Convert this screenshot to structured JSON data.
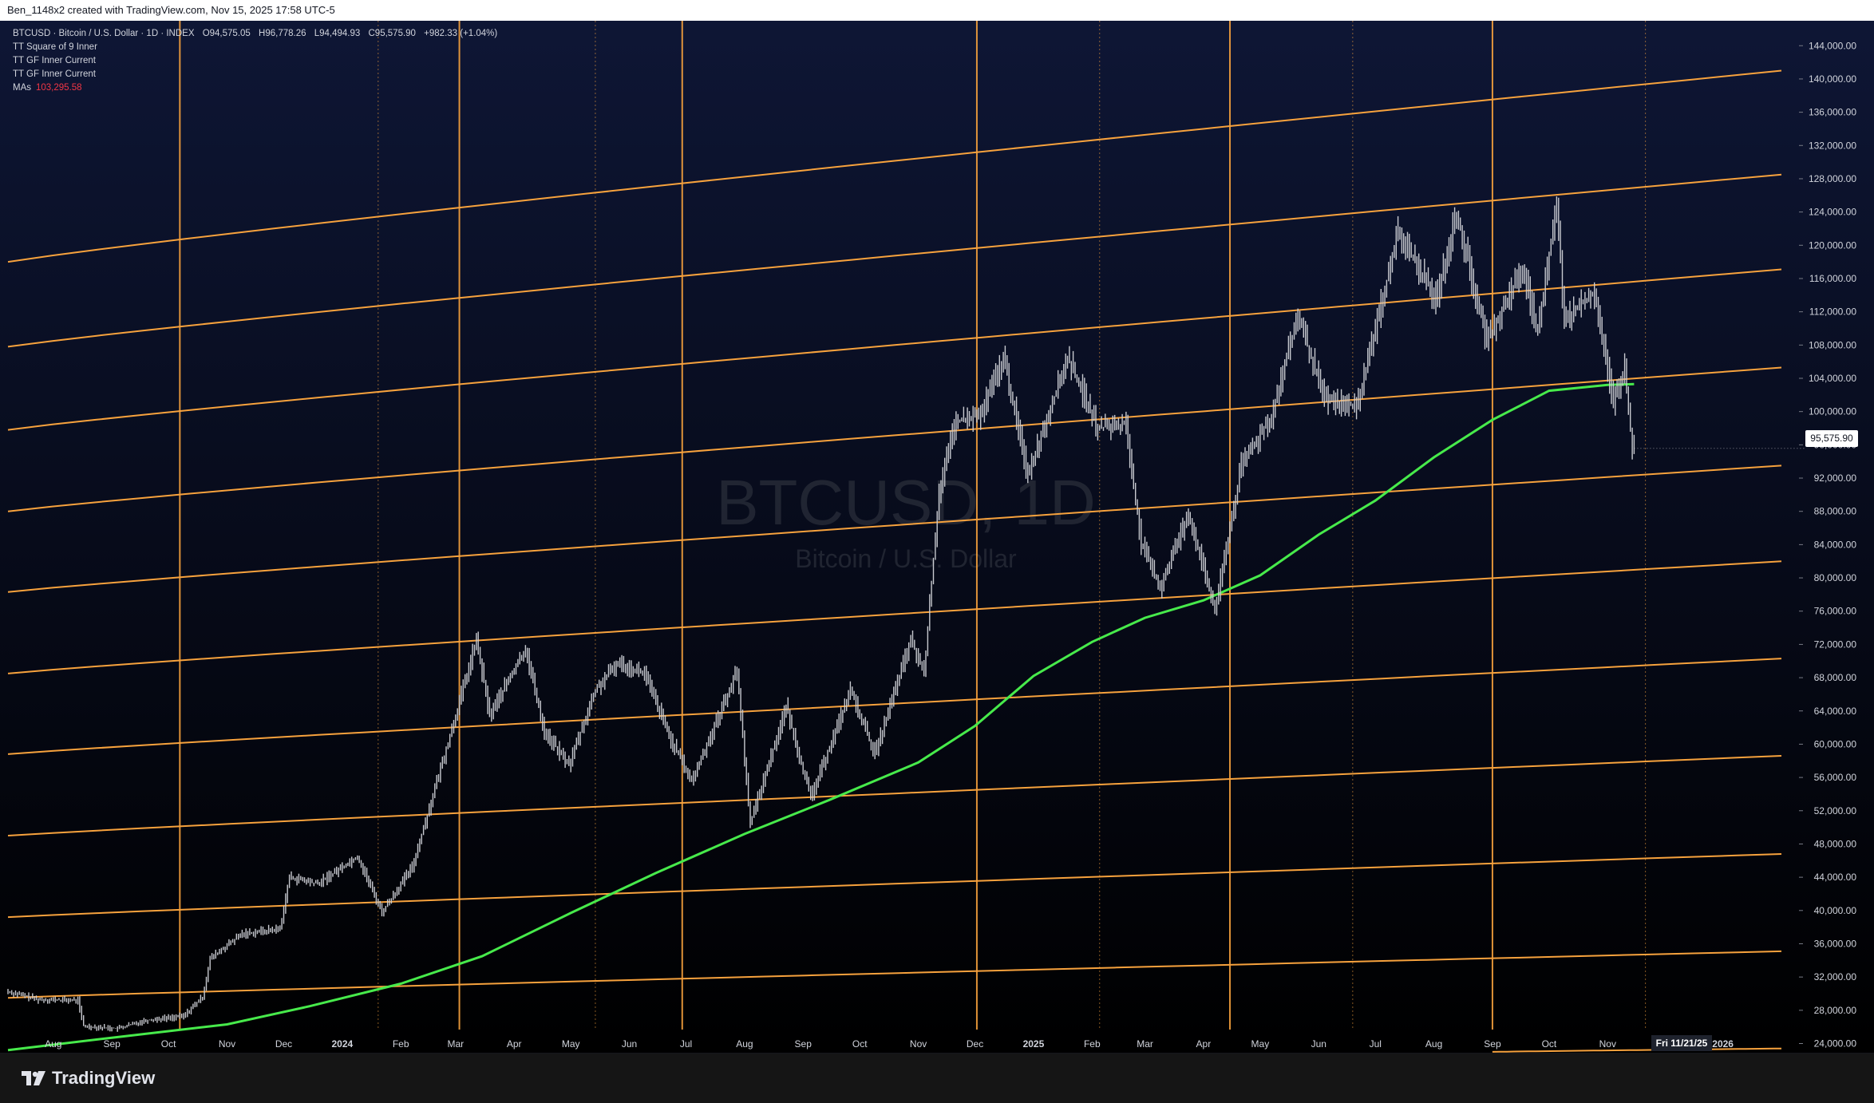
{
  "topbar": {
    "text": "Ben_1148x2 created with TradingView.com, Nov 15, 2025 17:58 UTC-5"
  },
  "legend": {
    "symbol": "BTCUSD · Bitcoin / U.S. Dollar · 1D · INDEX",
    "o_label": "O",
    "o_value": "94,575.05",
    "h_label": "H",
    "h_value": "96,778.26",
    "l_label": "L",
    "l_value": "94,494.93",
    "c_label": "C",
    "c_value": "95,575.90",
    "change": "+982.33 (+1.04%)",
    "indicators": [
      "TT Square of 9 Inner",
      "TT GF Inner Current",
      "TT GF Inner Current"
    ],
    "ma_label": "MAs",
    "ma_value": "103,295.58"
  },
  "watermark": {
    "ticker": "BTCUSD, 1D",
    "name": "Bitcoin / U.S. Dollar"
  },
  "price_tag": "95,575.90",
  "date_tag": "Fri 11/21/25",
  "brand": {
    "name": "TradingView"
  },
  "colors": {
    "background_top": "#0e1635",
    "background_bottom": "#000000",
    "band": "#f7a23d",
    "vline": "#f7a23d",
    "ma": "#47ea4b",
    "candle": "#c8cad0"
  },
  "chart_data": {
    "type": "line",
    "y_axis_side": "right",
    "ylim": [
      22800,
      147000
    ],
    "y_ticks": [
      "144,000.00",
      "140,000.00",
      "136,000.00",
      "132,000.00",
      "128,000.00",
      "124,000.00",
      "120,000.00",
      "116,000.00",
      "112,000.00",
      "108,000.00",
      "104,000.00",
      "100,000.00",
      "96,000.00",
      "92,000.00",
      "88,000.00",
      "84,000.00",
      "80,000.00",
      "76,000.00",
      "72,000.00",
      "68,000.00",
      "64,000.00",
      "60,000.00",
      "56,000.00",
      "52,000.00",
      "48,000.00",
      "44,000.00",
      "40,000.00",
      "36,000.00",
      "32,000.00",
      "28,000.00",
      "24,000.00"
    ],
    "xlim": [
      "2023-07-08",
      "2026-02-01"
    ],
    "x_ticks": [
      {
        "label": "Aug",
        "date": "2023-08-01"
      },
      {
        "label": "Sep",
        "date": "2023-09-01"
      },
      {
        "label": "Oct",
        "date": "2023-10-01"
      },
      {
        "label": "Nov",
        "date": "2023-11-01"
      },
      {
        "label": "Dec",
        "date": "2023-12-01"
      },
      {
        "label": "2024",
        "date": "2024-01-01"
      },
      {
        "label": "Feb",
        "date": "2024-02-01"
      },
      {
        "label": "Mar",
        "date": "2024-03-01"
      },
      {
        "label": "Apr",
        "date": "2024-04-01"
      },
      {
        "label": "May",
        "date": "2024-05-01"
      },
      {
        "label": "Jun",
        "date": "2024-06-01"
      },
      {
        "label": "Jul",
        "date": "2024-07-01"
      },
      {
        "label": "Aug",
        "date": "2024-08-01"
      },
      {
        "label": "Sep",
        "date": "2024-09-01"
      },
      {
        "label": "Oct",
        "date": "2024-10-01"
      },
      {
        "label": "Nov",
        "date": "2024-11-01"
      },
      {
        "label": "Dec",
        "date": "2024-12-01"
      },
      {
        "label": "2025",
        "date": "2025-01-01"
      },
      {
        "label": "Feb",
        "date": "2025-02-01"
      },
      {
        "label": "Mar",
        "date": "2025-03-01"
      },
      {
        "label": "Apr",
        "date": "2025-04-01"
      },
      {
        "label": "May",
        "date": "2025-05-01"
      },
      {
        "label": "Jun",
        "date": "2025-06-01"
      },
      {
        "label": "Jul",
        "date": "2025-07-01"
      },
      {
        "label": "Aug",
        "date": "2025-08-01"
      },
      {
        "label": "Sep",
        "date": "2025-09-01"
      },
      {
        "label": "Oct",
        "date": "2025-10-01"
      },
      {
        "label": "Nov",
        "date": "2025-11-01"
      },
      {
        "label": "2026",
        "date": "2026-01-01"
      }
    ],
    "vertical_lines": [
      {
        "date": "2023-10-07",
        "style": "solid"
      },
      {
        "date": "2024-01-20",
        "style": "dotted"
      },
      {
        "date": "2024-03-03",
        "style": "solid"
      },
      {
        "date": "2024-05-14",
        "style": "dotted"
      },
      {
        "date": "2024-06-29",
        "style": "solid"
      },
      {
        "date": "2024-12-02",
        "style": "solid"
      },
      {
        "date": "2025-02-05",
        "style": "dotted"
      },
      {
        "date": "2025-04-15",
        "style": "solid"
      },
      {
        "date": "2025-06-19",
        "style": "dotted"
      },
      {
        "date": "2025-09-01",
        "style": "solid"
      },
      {
        "date": "2025-11-21",
        "style": "dotted"
      }
    ],
    "bands": [
      {
        "start": "2023-07-08",
        "end": "2026-02-01",
        "values": [
          118000,
          141000
        ]
      },
      {
        "start": "2023-07-08",
        "end": "2026-02-01",
        "values": [
          107800,
          128500
        ]
      },
      {
        "start": "2023-07-08",
        "end": "2026-02-01",
        "values": [
          97800,
          117100
        ]
      },
      {
        "start": "2023-07-08",
        "end": "2026-02-01",
        "values": [
          88000,
          105300
        ]
      },
      {
        "start": "2023-07-08",
        "end": "2026-02-01",
        "values": [
          78300,
          93500
        ]
      },
      {
        "start": "2023-07-08",
        "end": "2026-02-01",
        "values": [
          68500,
          82000
        ]
      },
      {
        "start": "2023-07-08",
        "end": "2026-02-01",
        "values": [
          58800,
          70300
        ]
      },
      {
        "start": "2023-07-08",
        "end": "2026-02-01",
        "values": [
          49000,
          58600
        ]
      },
      {
        "start": "2023-07-08",
        "end": "2026-02-01",
        "values": [
          39200,
          46800
        ]
      },
      {
        "start": "2023-07-08",
        "end": "2026-02-01",
        "values": [
          29500,
          35100
        ]
      },
      {
        "start": "2025-09-01",
        "end": "2026-02-01",
        "values": [
          23000,
          23400
        ]
      }
    ],
    "series": [
      {
        "name": "BTCUSD",
        "kind": "price",
        "points": [
          [
            "2023-07-08",
            30300
          ],
          [
            "2023-07-25",
            29300
          ],
          [
            "2023-08-15",
            29200
          ],
          [
            "2023-08-18",
            26100
          ],
          [
            "2023-09-05",
            25800
          ],
          [
            "2023-09-20",
            26800
          ],
          [
            "2023-10-10",
            27300
          ],
          [
            "2023-10-20",
            29600
          ],
          [
            "2023-10-24",
            34200
          ],
          [
            "2023-11-10",
            37200
          ],
          [
            "2023-11-30",
            37800
          ],
          [
            "2023-12-05",
            44000
          ],
          [
            "2023-12-20",
            43200
          ],
          [
            "2024-01-10",
            46500
          ],
          [
            "2024-01-23",
            39800
          ],
          [
            "2024-02-08",
            45200
          ],
          [
            "2024-02-28",
            61000
          ],
          [
            "2024-03-13",
            72500
          ],
          [
            "2024-03-20",
            63500
          ],
          [
            "2024-04-08",
            71500
          ],
          [
            "2024-04-18",
            61500
          ],
          [
            "2024-05-01",
            57500
          ],
          [
            "2024-05-15",
            66500
          ],
          [
            "2024-05-27",
            69800
          ],
          [
            "2024-06-10",
            68500
          ],
          [
            "2024-06-24",
            60500
          ],
          [
            "2024-07-05",
            55500
          ],
          [
            "2024-07-29",
            68800
          ],
          [
            "2024-08-05",
            50500
          ],
          [
            "2024-08-24",
            64500
          ],
          [
            "2024-09-06",
            53500
          ],
          [
            "2024-09-27",
            66500
          ],
          [
            "2024-10-10",
            58800
          ],
          [
            "2024-10-29",
            72500
          ],
          [
            "2024-11-05",
            68500
          ],
          [
            "2024-11-13",
            90500
          ],
          [
            "2024-11-22",
            98800
          ],
          [
            "2024-12-05",
            99500
          ],
          [
            "2024-12-17",
            106500
          ],
          [
            "2024-12-30",
            92500
          ],
          [
            "2025-01-20",
            106500
          ],
          [
            "2025-02-05",
            98000
          ],
          [
            "2025-02-20",
            98500
          ],
          [
            "2025-02-28",
            84000
          ],
          [
            "2025-03-10",
            78800
          ],
          [
            "2025-03-25",
            87800
          ],
          [
            "2025-04-08",
            76000
          ],
          [
            "2025-04-22",
            93500
          ],
          [
            "2025-05-08",
            99500
          ],
          [
            "2025-05-22",
            111500
          ],
          [
            "2025-06-05",
            101500
          ],
          [
            "2025-06-22",
            100500
          ],
          [
            "2025-07-14",
            121500
          ],
          [
            "2025-08-03",
            113500
          ],
          [
            "2025-08-14",
            123800
          ],
          [
            "2025-08-30",
            108500
          ],
          [
            "2025-09-18",
            117200
          ],
          [
            "2025-09-26",
            109500
          ],
          [
            "2025-10-06",
            125000
          ],
          [
            "2025-10-10",
            111000
          ],
          [
            "2025-10-26",
            114500
          ],
          [
            "2025-11-05",
            101000
          ],
          [
            "2025-11-11",
            105500
          ],
          [
            "2025-11-15",
            95575.9
          ]
        ]
      },
      {
        "name": "MAs",
        "kind": "moving_average",
        "points": [
          [
            "2023-07-08",
            23200
          ],
          [
            "2023-09-01",
            24700
          ],
          [
            "2023-11-01",
            26300
          ],
          [
            "2023-12-15",
            28500
          ],
          [
            "2024-02-01",
            31200
          ],
          [
            "2024-03-15",
            34500
          ],
          [
            "2024-05-01",
            39700
          ],
          [
            "2024-06-15",
            44500
          ],
          [
            "2024-08-01",
            49200
          ],
          [
            "2024-09-15",
            53300
          ],
          [
            "2024-11-01",
            57800
          ],
          [
            "2024-12-01",
            62200
          ],
          [
            "2025-01-01",
            68200
          ],
          [
            "2025-02-01",
            72300
          ],
          [
            "2025-03-01",
            75200
          ],
          [
            "2025-04-01",
            77300
          ],
          [
            "2025-05-01",
            80300
          ],
          [
            "2025-06-01",
            85200
          ],
          [
            "2025-07-01",
            89300
          ],
          [
            "2025-08-01",
            94500
          ],
          [
            "2025-09-01",
            99000
          ],
          [
            "2025-10-01",
            102500
          ],
          [
            "2025-11-01",
            103200
          ],
          [
            "2025-11-15",
            103295.58
          ]
        ]
      }
    ]
  }
}
